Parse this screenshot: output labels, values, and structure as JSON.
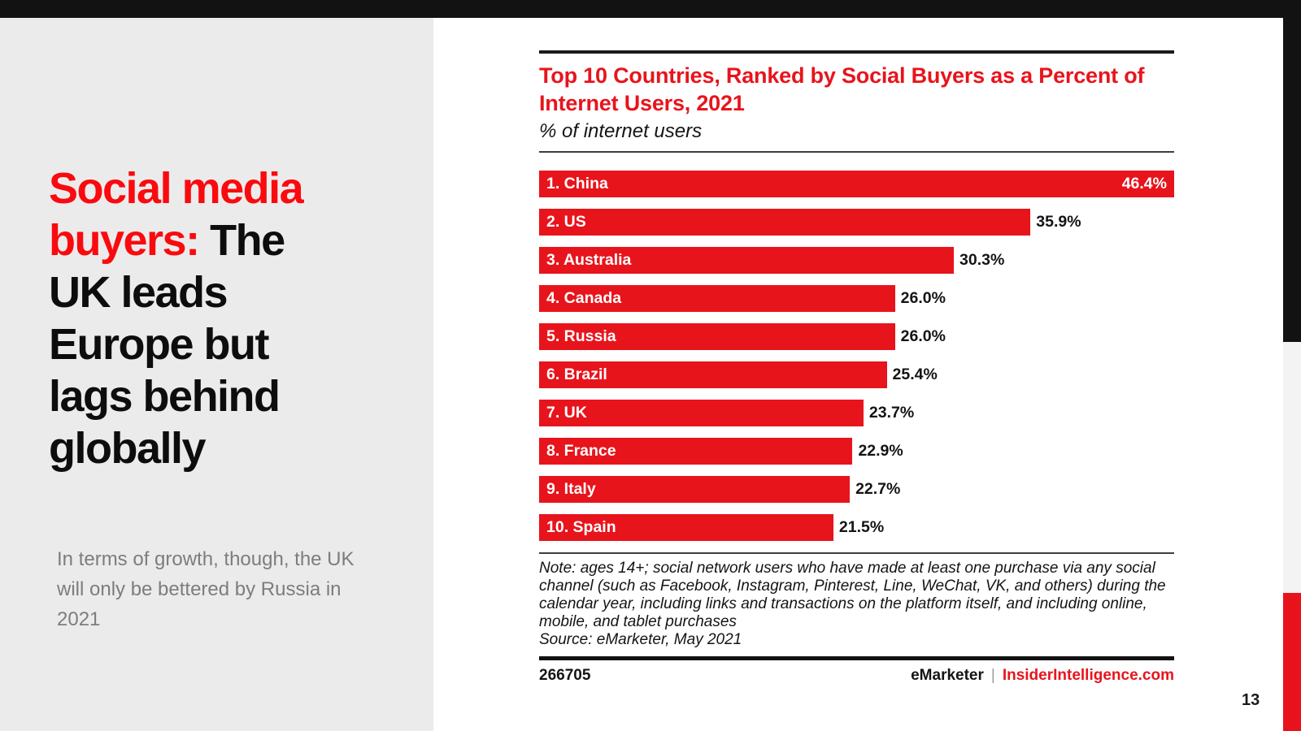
{
  "slide": {
    "page_number": "13",
    "headline": {
      "red": "Social media buyers:",
      "black": "The UK leads Europe but lags behind globally"
    },
    "subtext": "In terms of growth, though, the UK will only be bettered by Russia in 2021",
    "colors": {
      "headline_red": "#FA0A0F",
      "panel_gray": "#EBEBEB",
      "top_bar_black": "#121212",
      "edge_gray": "#F3F3F3",
      "edge_red": "#E8121C"
    }
  },
  "chart_data": {
    "type": "bar",
    "orientation": "horizontal",
    "title": "Top 10 Countries, Ranked by Social Buyers as a Percent of Internet Users, 2021",
    "subtitle": "% of internet users",
    "categories": [
      "1. China",
      "2. US",
      "3. Australia",
      "4. Canada",
      "5. Russia",
      "6. Brazil",
      "7. UK",
      "8. France",
      "9. Italy",
      "10. Spain"
    ],
    "values": [
      46.4,
      35.9,
      30.3,
      26.0,
      26.0,
      25.4,
      23.7,
      22.9,
      22.7,
      21.5
    ],
    "value_labels": [
      "46.4%",
      "35.9%",
      "30.3%",
      "26.0%",
      "26.0%",
      "25.4%",
      "23.7%",
      "22.9%",
      "22.7%",
      "21.5%"
    ],
    "value_label_inside": [
      true,
      false,
      false,
      false,
      false,
      false,
      false,
      false,
      false,
      false
    ],
    "xlim": [
      0,
      46.4
    ],
    "bar_color": "#E8141C",
    "grid": false,
    "legend": false,
    "note": "Note: ages 14+; social network users who have made at least one purchase via any social channel (such as Facebook, Instagram, Pinterest, Line, WeChat, VK, and others) during the calendar year, including links and transactions on the platform itself, and including online, mobile, and tablet purchases",
    "source": "Source: eMarketer, May 2021",
    "chart_id": "266705",
    "brand_left": "eMarketer",
    "brand_separator": "|",
    "brand_right": "InsiderIntelligence.com"
  }
}
